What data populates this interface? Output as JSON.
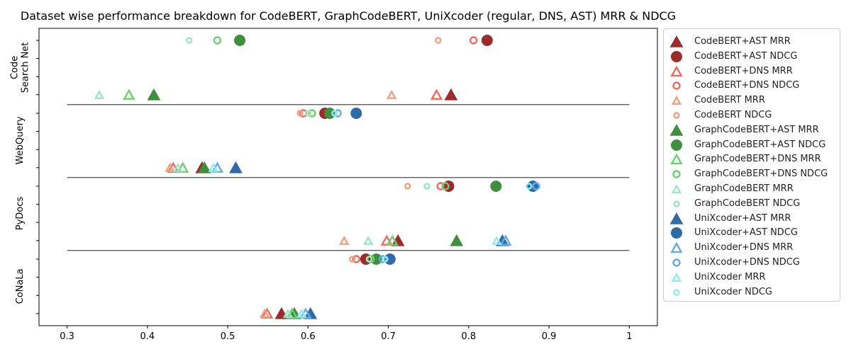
{
  "chart_data": {
    "type": "scatter",
    "title": "Dataset wise performance breakdown for CodeBERT, GraphCodeBERT, UniXcoder (regular, DNS, AST) MRR & NDCG",
    "x_ticks": [
      "0.3",
      "0.4",
      "0.5",
      "0.6",
      "0.7",
      "0.8",
      "0.9",
      "1"
    ],
    "xlim": [
      0.265,
      1.035
    ],
    "datasets": [
      {
        "name": "Code Search Net",
        "label_lines": [
          "Code",
          "Search Net"
        ]
      },
      {
        "name": "WebQuery",
        "label_lines": [
          "WebQuery"
        ]
      },
      {
        "name": "PyDocs",
        "label_lines": [
          "PyDocs"
        ]
      },
      {
        "name": "CoNaLa",
        "label_lines": [
          "CoNaLa"
        ]
      }
    ],
    "series": [
      {
        "name": "CodeBERT+AST MRR",
        "color": "#9b2c2c",
        "marker": "triangle",
        "style": "filled",
        "size": "large",
        "values": [
          0.778,
          0.468,
          0.712,
          0.567
        ]
      },
      {
        "name": "CodeBERT+AST NDCG",
        "color": "#9b2c2c",
        "marker": "circle",
        "style": "filled",
        "size": "large",
        "values": [
          0.823,
          0.621,
          0.775,
          0.672
        ]
      },
      {
        "name": "CodeBERT+DNS MRR",
        "color": "#f0685e",
        "marker": "triangle",
        "style": "open",
        "size": "medium",
        "values": [
          0.76,
          0.432,
          0.698,
          0.549
        ]
      },
      {
        "name": "CodeBERT+DNS NDCG",
        "color": "#f0685e",
        "marker": "circle",
        "style": "open",
        "size": "medium",
        "values": [
          0.806,
          0.594,
          0.765,
          0.66
        ]
      },
      {
        "name": "CodeBERT MRR",
        "color": "#f0a07e",
        "marker": "triangle",
        "style": "open",
        "size": "small",
        "values": [
          0.704,
          0.428,
          0.645,
          0.546
        ]
      },
      {
        "name": "CodeBERT NDCG",
        "color": "#f0a07e",
        "marker": "circle",
        "style": "open",
        "size": "small",
        "values": [
          0.762,
          0.59,
          0.724,
          0.655
        ]
      },
      {
        "name": "GraphCodeBERT+AST MRR",
        "color": "#3f8f3f",
        "marker": "triangle",
        "style": "filled",
        "size": "large",
        "values": [
          0.408,
          0.471,
          0.785,
          0.583
        ]
      },
      {
        "name": "GraphCodeBERT+AST NDCG",
        "color": "#3f8f3f",
        "marker": "circle",
        "style": "filled",
        "size": "large",
        "values": [
          0.515,
          0.627,
          0.834,
          0.685
        ]
      },
      {
        "name": "GraphCodeBERT+DNS MRR",
        "color": "#6bcf6b",
        "marker": "triangle",
        "style": "open",
        "size": "medium",
        "values": [
          0.377,
          0.444,
          0.705,
          0.58
        ]
      },
      {
        "name": "GraphCodeBERT+DNS NDCG",
        "color": "#6bcf6b",
        "marker": "circle",
        "style": "open",
        "size": "medium",
        "values": [
          0.487,
          0.605,
          0.771,
          0.678
        ]
      },
      {
        "name": "GraphCodeBERT MRR",
        "color": "#9be6c4",
        "marker": "triangle",
        "style": "open",
        "size": "small",
        "values": [
          0.34,
          0.438,
          0.675,
          0.575
        ]
      },
      {
        "name": "GraphCodeBERT NDCG",
        "color": "#9be6c4",
        "marker": "circle",
        "style": "open",
        "size": "small",
        "values": [
          0.452,
          0.6,
          0.748,
          0.676
        ]
      },
      {
        "name": "UniXcoder+AST MRR",
        "color": "#2f6bab",
        "marker": "triangle",
        "style": "filled",
        "size": "large",
        "values": [
          null,
          0.51,
          0.842,
          0.603
        ]
      },
      {
        "name": "UniXcoder+AST NDCG",
        "color": "#2f6bab",
        "marker": "circle",
        "style": "filled",
        "size": "large",
        "values": [
          null,
          0.66,
          0.88,
          0.702
        ]
      },
      {
        "name": "UniXcoder+DNS MRR",
        "color": "#62acdf",
        "marker": "triangle",
        "style": "open",
        "size": "medium",
        "values": [
          null,
          0.487,
          0.846,
          0.597
        ]
      },
      {
        "name": "UniXcoder+DNS NDCG",
        "color": "#62acdf",
        "marker": "circle",
        "style": "open",
        "size": "medium",
        "values": [
          null,
          0.637,
          0.884,
          0.693
        ]
      },
      {
        "name": "UniXcoder MRR",
        "color": "#8eeaf5",
        "marker": "triangle",
        "style": "open",
        "size": "small",
        "values": [
          null,
          0.482,
          0.835,
          0.592
        ]
      },
      {
        "name": "UniXcoder NDCG",
        "color": "#8eeaf5",
        "marker": "circle",
        "style": "open",
        "size": "small",
        "values": [
          null,
          0.633,
          0.875,
          0.696
        ]
      }
    ],
    "legend_position": "right, outside plot",
    "grid": false
  }
}
